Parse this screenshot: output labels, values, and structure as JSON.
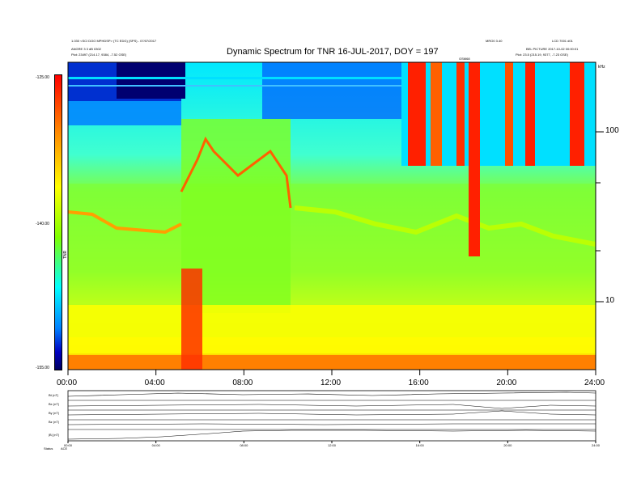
{
  "header": {
    "title": "Dynamic Spectrum for TNR 16-JUL-2017, DOY = 197",
    "info_left_1": "1.030 <SCI DOO MPHDSP> (TC EDG) (SPS) - 07/07/2017",
    "info_left_2": "ANGRE 3 3 dB 0302",
    "info_left_3": "Plot: 23497 (214.17, 9384, -7.52 GSE)",
    "info_mid": "MRO0 3.40",
    "info_right_1": "LCD 7001 d01",
    "info_right_2": "BEL PICTURE 2017-10-02 00:00:01",
    "info_right_3": "Plot: 23.5 (215.19, 9377, -7.23 GSE)",
    "marker_label": "GSM68"
  },
  "colorbar": {
    "top_label": "-125.00",
    "mid_label": "-140.00",
    "bottom_label": "-155.00",
    "unit_label": "TNR"
  },
  "chart_data": [
    {
      "type": "heatmap",
      "title": "Dynamic Spectrum for TNR 16-JUL-2017, DOY = 197",
      "x_ticks": [
        "00:00",
        "04:00",
        "08:00",
        "12:00",
        "16:00",
        "20:00",
        "24:00"
      ],
      "xlim": [
        0,
        24
      ],
      "y_scale": "log",
      "y_ticks": [
        "100",
        "10"
      ],
      "y_corner_label": "kHz",
      "color_range": [
        -155,
        -125
      ],
      "colormap": [
        "#000080",
        "#0000ff",
        "#00c8ff",
        "#00ffff",
        "#7fff00",
        "#ffff00",
        "#ff8000",
        "#ff0000",
        "#800000"
      ]
    },
    {
      "type": "line",
      "panel_labels": [
        "Bt (nT)",
        "Bx (nT)",
        "By (nT)",
        "Bz (nT)",
        "|B| (nT)"
      ],
      "x_ticks": [
        "00:00",
        "04:00",
        "08:00",
        "12:00",
        "16:00",
        "20:00",
        "24:00"
      ],
      "footer_label": "Status",
      "footer_value": "ACE"
    }
  ]
}
